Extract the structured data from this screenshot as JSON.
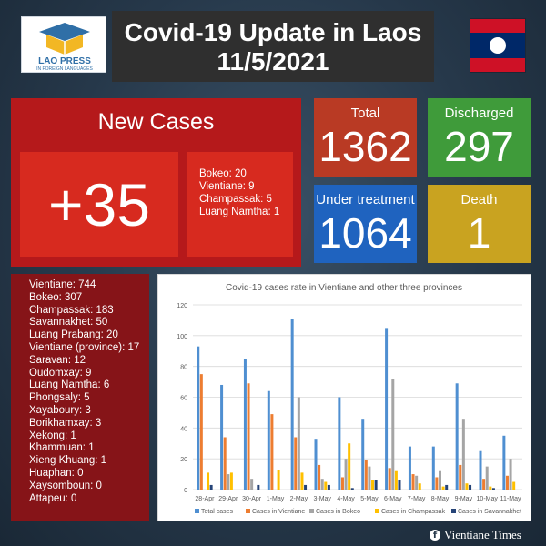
{
  "header": {
    "title_line1": "Covid-19 Update in Laos",
    "title_line2": "11/5/2021",
    "logo_text_1": "LAO PRESS",
    "logo_text_2": "IN FOREIGN LANGUAGES",
    "flag_colors": {
      "red": "#ce1126",
      "blue": "#002868",
      "white": "#ffffff"
    }
  },
  "new_cases": {
    "title": "New Cases",
    "count": "+35",
    "breakdown": [
      "Bokeo: 20",
      "Vientiane: 9",
      "Champassak: 5",
      "Luang Namtha: 1"
    ]
  },
  "stats": {
    "total": {
      "label": "Total",
      "value": "1362"
    },
    "discharged": {
      "label": "Discharged",
      "value": "297"
    },
    "under_treatment": {
      "label": "Under treatment",
      "value": "1064"
    },
    "death": {
      "label": "Death",
      "value": "1"
    }
  },
  "provinces": [
    "Vientiane: 744",
    "Bokeo: 307",
    "Champassak: 183",
    "Savannakhet: 50",
    "Luang Prabang: 20",
    "Vientiane (province): 17",
    "Saravan: 12",
    "Oudomxay: 9",
    "Luang Namtha: 6",
    "Phongsaly: 5",
    "Xayaboury: 3",
    "Borikhamxay: 3",
    "Xekong: 1",
    "Khammuan: 1",
    "Xieng Khuang: 1",
    "Huaphan: 0",
    "Xaysomboun: 0",
    "Attapeu: 0"
  ],
  "chart_data": {
    "type": "bar",
    "title": "Covid-19 cases rate in Vientiane and other three provinces",
    "categories": [
      "28-Apr",
      "29-Apr",
      "30-Apr",
      "1-May",
      "2-May",
      "3-May",
      "4-May",
      "5-May",
      "6-May",
      "7-May",
      "8-May",
      "9-May",
      "10-May",
      "11-May"
    ],
    "yticks": [
      0,
      20,
      40,
      60,
      80,
      100,
      120
    ],
    "ylim": [
      0,
      120
    ],
    "grid": true,
    "legend_position": "bottom",
    "series": [
      {
        "name": "Total cases",
        "color": "#4f8fd1",
        "values": [
          93,
          68,
          85,
          64,
          111,
          33,
          60,
          46,
          105,
          28,
          28,
          69,
          25,
          35
        ]
      },
      {
        "name": "Cases in Vientiane",
        "color": "#ed7d31",
        "values": [
          75,
          34,
          69,
          49,
          34,
          16,
          8,
          19,
          14,
          10,
          8,
          16,
          7,
          9
        ]
      },
      {
        "name": "Cases in Bokeo",
        "color": "#a5a5a5",
        "values": [
          0,
          10,
          7,
          0,
          60,
          7,
          20,
          15,
          72,
          9,
          12,
          46,
          15,
          20
        ]
      },
      {
        "name": "Cases in Champassak",
        "color": "#ffc000",
        "values": [
          11,
          11,
          0,
          13,
          11,
          5,
          30,
          6,
          12,
          4,
          2,
          4,
          2,
          5
        ]
      },
      {
        "name": "Cases in Savannakhet",
        "color": "#264478",
        "values": [
          3,
          0,
          3,
          0,
          3,
          3,
          1,
          6,
          6,
          0,
          3,
          3,
          1,
          0
        ]
      }
    ]
  },
  "footer": {
    "icon": "f",
    "text": "Vientiane Times"
  }
}
